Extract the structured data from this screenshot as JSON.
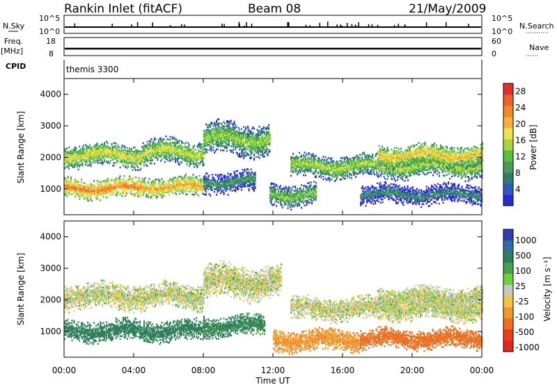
{
  "header": {
    "station": "Rankin Inlet (fitACF)",
    "beam": "Beam 08",
    "date": "21/May/2009"
  },
  "strips": {
    "nsky_label": "N.Sky",
    "nsky_ticks": [
      "10^5",
      "10^0"
    ],
    "nsearch_label": "N.Search",
    "nsearch_ticks": [
      "10^5",
      "10^0"
    ],
    "freq_label": "Freq.",
    "freq_unit": "[MHz]",
    "freq_ticks": [
      "18",
      "8"
    ],
    "nave_label": "Nave",
    "nave_ticks": [
      "60",
      "0"
    ],
    "cpid_label": "CPID",
    "cpid_value": "themis 3300"
  },
  "colors": {
    "power": [
      "#2a2ad8",
      "#2e57c8",
      "#2e7f67",
      "#4b9a5a",
      "#55c23c",
      "#a8d63a",
      "#f0e24c",
      "#f7b23a",
      "#f28a24",
      "#f0602a",
      "#e0302a"
    ],
    "velocity": [
      "#2c3fb0",
      "#2e6fa0",
      "#2e7f5e",
      "#4aa14a",
      "#6cd23a",
      "#c8c8c0",
      "#f5c540",
      "#f59a2a",
      "#f07020",
      "#f03a20",
      "#e0281c"
    ]
  },
  "chart_data": [
    {
      "type": "heatmap",
      "panel": "power",
      "xlabel": "",
      "ylabel": "Slant Range [km]",
      "x_ticks": [
        "00:00",
        "04:00",
        "08:00",
        "12:00",
        "16:00",
        "20:00",
        "00:00"
      ],
      "x_range_hours": [
        0,
        24
      ],
      "y_ticks": [
        "1000",
        "2000",
        "3000",
        "4000"
      ],
      "y_range_km": [
        180,
        4500
      ],
      "colorbar_label": "Power [dB]",
      "colorbar_ticks": [
        "4",
        "8",
        "12",
        "16",
        "20",
        "24",
        "28"
      ],
      "colorbar_range": [
        0,
        30
      ],
      "bands": [
        {
          "from_h": 0.0,
          "to_h": 4.5,
          "center_km": 1000,
          "width_km": 320,
          "value_db": 24
        },
        {
          "from_h": 0.0,
          "to_h": 4.5,
          "center_km": 2050,
          "width_km": 380,
          "value_db": 18
        },
        {
          "from_h": 4.5,
          "to_h": 8.0,
          "center_km": 1050,
          "width_km": 320,
          "value_db": 22
        },
        {
          "from_h": 4.5,
          "to_h": 8.0,
          "center_km": 2150,
          "width_km": 420,
          "value_db": 17
        },
        {
          "from_h": 8.0,
          "to_h": 11.8,
          "center_km": 2550,
          "width_km": 520,
          "value_db": 15
        },
        {
          "from_h": 8.0,
          "to_h": 11.0,
          "center_km": 1200,
          "width_km": 360,
          "value_db": 10
        },
        {
          "from_h": 11.8,
          "to_h": 14.5,
          "center_km": 800,
          "width_km": 380,
          "value_db": 14
        },
        {
          "from_h": 13.0,
          "to_h": 24.0,
          "center_km": 1700,
          "width_km": 380,
          "value_db": 16
        },
        {
          "from_h": 18.0,
          "to_h": 24.0,
          "center_km": 2050,
          "width_km": 360,
          "value_db": 20
        },
        {
          "from_h": 17.0,
          "to_h": 24.0,
          "center_km": 800,
          "width_km": 320,
          "value_db": 9
        }
      ]
    },
    {
      "type": "heatmap",
      "panel": "velocity",
      "xlabel": "Time UT",
      "ylabel": "Slant Range [km]",
      "x_ticks": [
        "00:00",
        "04:00",
        "08:00",
        "12:00",
        "16:00",
        "20:00",
        "00:00"
      ],
      "x_range_hours": [
        0,
        24
      ],
      "y_ticks": [
        "1000",
        "2000",
        "3000",
        "4000"
      ],
      "y_range_km": [
        180,
        4500
      ],
      "colorbar_label": "Velocity [m s⁻¹]",
      "colorbar_ticks": [
        "1000",
        "500",
        "100",
        "25",
        "-25",
        "-100",
        "-500",
        "-1000"
      ],
      "bands": [
        {
          "from_h": 0.0,
          "to_h": 8.0,
          "center_km": 1000,
          "width_km": 340,
          "value_mps": 150
        },
        {
          "from_h": 0.0,
          "to_h": 8.0,
          "center_km": 2100,
          "width_km": 420,
          "value_mps": 0
        },
        {
          "from_h": 8.0,
          "to_h": 12.5,
          "center_km": 2550,
          "width_km": 560,
          "value_mps": 0
        },
        {
          "from_h": 8.0,
          "to_h": 11.5,
          "center_km": 1150,
          "width_km": 360,
          "value_mps": 120
        },
        {
          "from_h": 12.0,
          "to_h": 17.0,
          "center_km": 700,
          "width_km": 360,
          "value_mps": -150
        },
        {
          "from_h": 13.0,
          "to_h": 24.0,
          "center_km": 1700,
          "width_km": 380,
          "value_mps": 0
        },
        {
          "from_h": 18.0,
          "to_h": 24.0,
          "center_km": 2050,
          "width_km": 360,
          "value_mps": 0
        },
        {
          "from_h": 17.0,
          "to_h": 24.0,
          "center_km": 750,
          "width_km": 320,
          "value_mps": -300
        }
      ]
    }
  ]
}
